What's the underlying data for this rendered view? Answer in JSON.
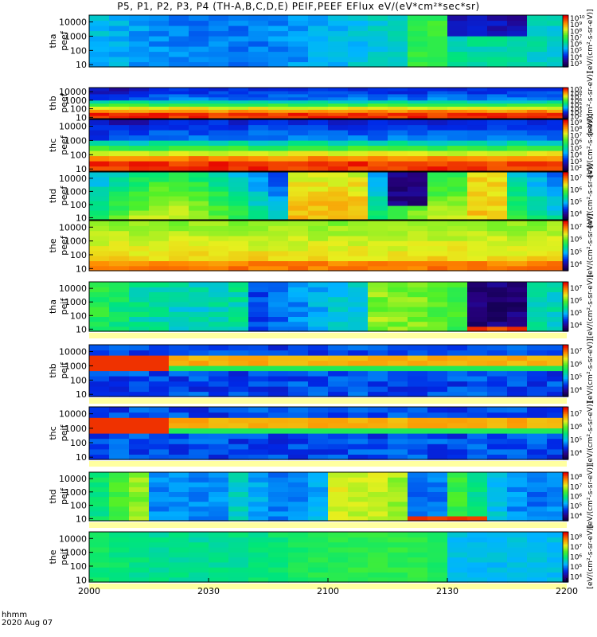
{
  "chart_data": {
    "type": "heatmap",
    "title": "P5, P1, P2, P3, P4 (TH-A,B,C,D,E) PEIF,PEEF EFlux eV/(eV*cm²*sec*sr)",
    "x_ticks": [
      "2000",
      "2030",
      "2100",
      "2130",
      "2200"
    ],
    "x_label": "hhmm",
    "date": "2020 Aug 07",
    "y_ticks": [
      "10",
      "100",
      "1000",
      "10000"
    ],
    "y_range_eV": [
      7,
      30000
    ],
    "colorbar_units": "[eV/(cm²-s-sr-eV)]",
    "panels": [
      {
        "name": "tha peef",
        "l1": "tha",
        "l2": "peef",
        "field": "low",
        "cb": [
          "10³",
          "10⁴",
          "10⁵",
          "10⁶",
          "10⁷",
          "10⁸",
          "10⁹",
          "10¹⁰"
        ]
      },
      {
        "name": "thb peef",
        "l1": "thb",
        "l2": "peef",
        "field": "peak",
        "cb": [
          "10²",
          "10³",
          "10⁴",
          "10⁵",
          "10⁶",
          "10⁷",
          "10⁸",
          "10⁹"
        ]
      },
      {
        "name": "thc peef",
        "l1": "thc",
        "l2": "peef",
        "field": "peak",
        "cb": [
          "10²",
          "10³",
          "10⁴",
          "10⁵",
          "10⁶",
          "10⁷",
          "10⁸",
          "10⁹"
        ]
      },
      {
        "name": "thd peef",
        "l1": "thd",
        "l2": "peef",
        "field": "mid",
        "cb": [
          "10⁴",
          "10⁵",
          "10⁶",
          "10⁷"
        ]
      },
      {
        "name": "the peef",
        "l1": "the",
        "l2": "peef",
        "field": "high",
        "cb": [
          "10⁴",
          "10⁵",
          "10⁶",
          "10⁷"
        ]
      },
      {
        "name": "tha peif",
        "l1": "tha",
        "l2": "peif",
        "field": "ion",
        "cb": [
          "10⁴",
          "10⁵",
          "10⁶",
          "10⁷"
        ]
      },
      {
        "name": "thb peif",
        "l1": "thb",
        "l2": "peif",
        "field": "band",
        "cb": [
          "10⁴",
          "10⁵",
          "10⁶",
          "10⁷"
        ]
      },
      {
        "name": "thc peif",
        "l1": "thc",
        "l2": "peif",
        "field": "band",
        "cb": [
          "10⁴",
          "10⁵",
          "10⁶",
          "10⁷"
        ]
      },
      {
        "name": "thd peif",
        "l1": "thd",
        "l2": "peif",
        "field": "ion2",
        "cb": [
          "10⁴",
          "10⁵",
          "10⁶",
          "10⁷",
          "10⁸"
        ]
      },
      {
        "name": "the peif",
        "l1": "the",
        "l2": "peif",
        "field": "flat",
        "cb": [
          "10⁴",
          "10⁵",
          "10⁶",
          "10⁷",
          "10⁸"
        ]
      }
    ]
  }
}
